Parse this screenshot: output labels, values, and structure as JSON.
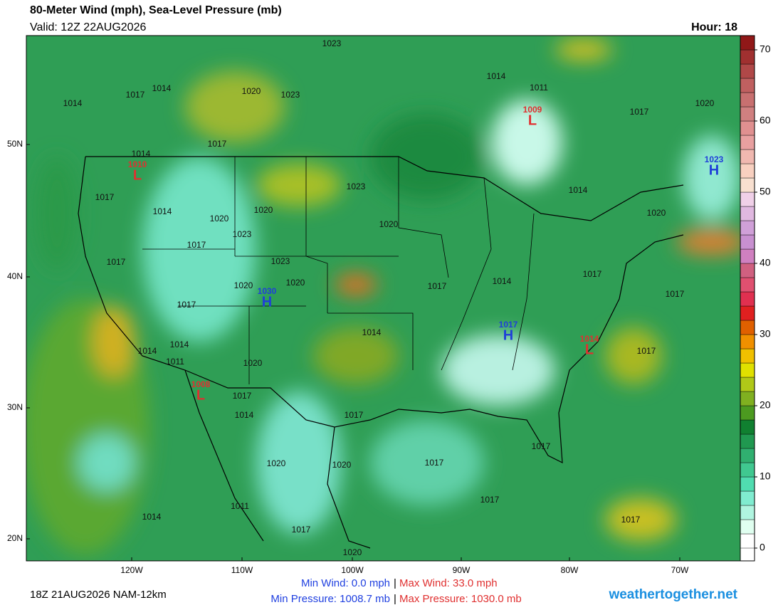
{
  "header": {
    "title": "80-Meter Wind (mph), Sea-Level Pressure (mb)",
    "valid": "Valid: 12Z 22AUG2026",
    "hour": "Hour: 18"
  },
  "map": {
    "lat_labels": [
      "50N",
      "40N",
      "30N",
      "20N"
    ],
    "lon_labels": [
      "120W",
      "110W",
      "100W",
      "90W",
      "80W",
      "70W"
    ],
    "centers": [
      {
        "type": "L",
        "pressure": "1010",
        "color": "#e03030"
      },
      {
        "type": "L",
        "pressure": "1009",
        "color": "#e03030"
      },
      {
        "type": "H",
        "pressure": "1023",
        "color": "#1f3fd8"
      },
      {
        "type": "H",
        "pressure": "1030",
        "color": "#1f3fd8"
      },
      {
        "type": "H",
        "pressure": "1017",
        "color": "#1f3fd8"
      },
      {
        "type": "L",
        "pressure": "1014",
        "color": "#e03030"
      },
      {
        "type": "L",
        "pressure": "1008",
        "color": "#e03030"
      }
    ],
    "isobar_labels": [
      "1023",
      "1014",
      "1011",
      "1017",
      "1014",
      "1014",
      "1020",
      "1023",
      "1017",
      "1020",
      "1017",
      "1014",
      "1023",
      "1014",
      "1017",
      "1014",
      "1020",
      "1020",
      "1023",
      "1020",
      "1020",
      "1017",
      "1017",
      "1023",
      "1017",
      "1020",
      "1020",
      "1017",
      "1014",
      "1017",
      "1017",
      "1014",
      "1014",
      "1014",
      "1011",
      "1020",
      "1017",
      "1017",
      "1014",
      "1017",
      "1017",
      "1017",
      "1020",
      "1020",
      "1017",
      "1011",
      "1014",
      "1017",
      "1017",
      "1020"
    ]
  },
  "colorbar": {
    "ticks": [
      0,
      10,
      20,
      30,
      40,
      50,
      60,
      70
    ],
    "colors": [
      "#ffffff",
      "#e0fff0",
      "#b0f5e0",
      "#80ecd0",
      "#50dcb0",
      "#40c890",
      "#30b070",
      "#209850",
      "#108030",
      "#4c9a20",
      "#80b020",
      "#b0c818",
      "#e0e000",
      "#f0c000",
      "#f09000",
      "#e06000",
      "#e02020",
      "#e03050",
      "#e05070",
      "#d06080",
      "#d080c0",
      "#c890d0",
      "#d0a0d8",
      "#e0b8e0",
      "#f0d0e8",
      "#f8e0d0",
      "#f8d0c0",
      "#f0b8b0",
      "#e8a0a0",
      "#e09090",
      "#d08080",
      "#c87070",
      "#c06060",
      "#b04848",
      "#a03030",
      "#901818",
      "#800000"
    ]
  },
  "footer": {
    "run": "18Z 21AUG2026 NAM-12km",
    "min_wind": "Min Wind:   0.0 mph",
    "sep1": "|",
    "max_wind": "Max Wind:  33.0 mph",
    "min_pressure": "Min Pressure: 1008.7 mb",
    "sep2": "|",
    "max_pressure": "Max Pressure: 1030.0 mb",
    "site": "weathertogether.net"
  }
}
